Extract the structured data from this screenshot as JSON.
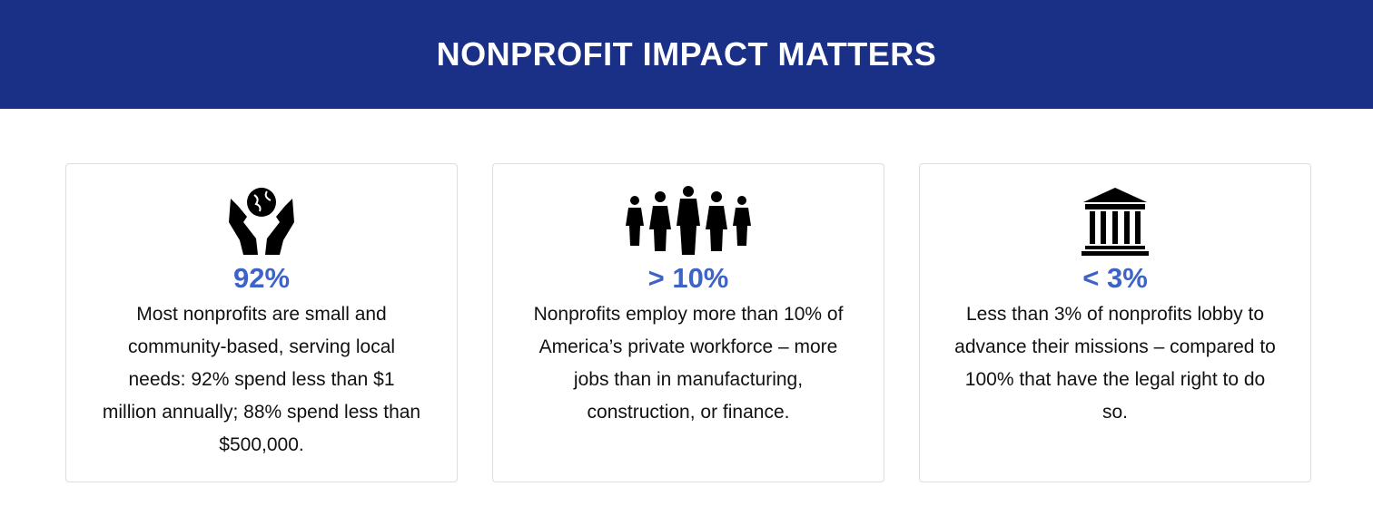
{
  "header": {
    "title": "NONPROFIT IMPACT MATTERS"
  },
  "cards": [
    {
      "stat": "92%",
      "text": "Most nonprofits are small and community-based, serving local needs: 92% spend less than $1 million annually; 88% spend less than $500,000."
    },
    {
      "stat": "> 10%",
      "text": "Nonprofits employ more than 10% of America’s private workforce – more jobs than in manufacturing, construction, or finance."
    },
    {
      "stat": "< 3%",
      "text": "Less than 3% of nonprofits lobby to advance their missions – compared to 100% that have the legal right to do so."
    }
  ]
}
